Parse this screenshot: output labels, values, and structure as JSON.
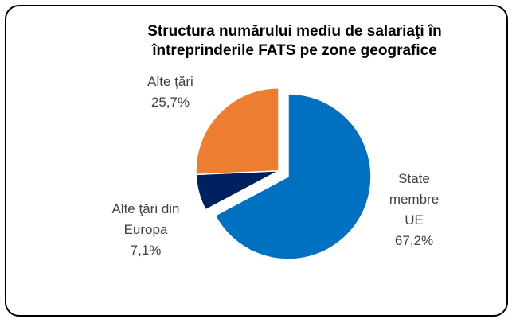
{
  "chart_data": {
    "type": "pie",
    "title": "Structura numărului mediu de salariaţi în întreprinderile FATS pe zone geografice",
    "categories": [
      "State membre UE",
      "Alte ţări din Europa",
      "Alte ţări"
    ],
    "values": [
      67.2,
      7.1,
      25.7
    ],
    "value_labels": [
      "67,2%",
      "7,1%",
      "25,7%"
    ],
    "colors": [
      "#0070c0",
      "#002060",
      "#ed7d31"
    ]
  }
}
